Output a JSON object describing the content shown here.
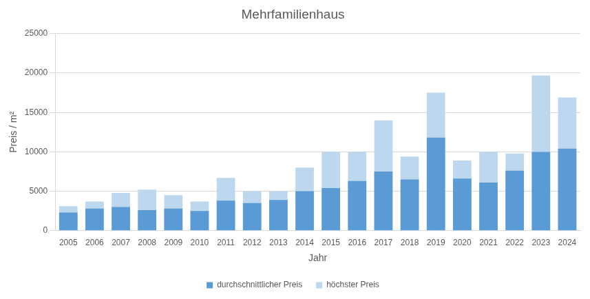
{
  "chart_data": {
    "type": "bar",
    "title": "Mehrfamilienhaus",
    "x_label": "Jahr",
    "y_label": "Preis / m²",
    "categories": [
      "2005",
      "2006",
      "2007",
      "2008",
      "2009",
      "2010",
      "2011",
      "2012",
      "2013",
      "2014",
      "2015",
      "2016",
      "2017",
      "2018",
      "2019",
      "2020",
      "2021",
      "2022",
      "2023",
      "2024"
    ],
    "series": [
      {
        "name": "höchster Preis",
        "color": "#bdd7ee",
        "values": [
          3100,
          3700,
          4800,
          5200,
          4500,
          3700,
          6700,
          5000,
          5000,
          8000,
          10000,
          10000,
          14000,
          9400,
          17500,
          8900,
          10000,
          9800,
          19700,
          16900
        ]
      },
      {
        "name": "durchschnittlicher Preis",
        "color": "#5b9bd5",
        "values": [
          2300,
          2800,
          3000,
          2600,
          2800,
          2500,
          3800,
          3500,
          3900,
          5000,
          5400,
          6300,
          7500,
          6500,
          11800,
          6600,
          6100,
          7600,
          10000,
          10400
        ]
      }
    ],
    "stacked": false,
    "ylim": [
      0,
      25000
    ],
    "yticks": [
      0,
      5000,
      10000,
      15000,
      20000,
      25000
    ],
    "grid": true,
    "legend": "bottom"
  }
}
